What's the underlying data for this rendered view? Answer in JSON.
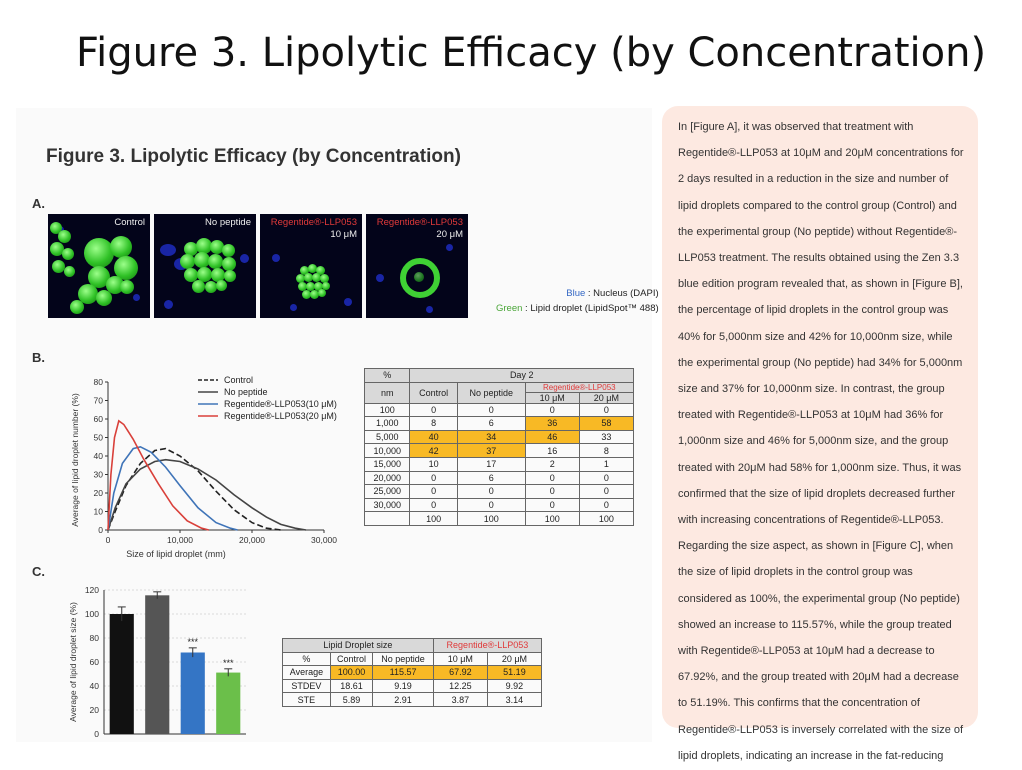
{
  "slide": {
    "title": "Figure 3. Lipolytic Efficacy (by Concentration)"
  },
  "figure": {
    "heading": "Figure 3. Lipolytic Efficacy (by Concentration)",
    "panel_a": {
      "letter": "A.",
      "images": [
        {
          "label": "Control"
        },
        {
          "label": "No peptide"
        },
        {
          "label": "Regentide®-LLP053",
          "conc": "10 μM"
        },
        {
          "label": "Regentide®-LLP053",
          "conc": "20 μM"
        }
      ],
      "stain_legend": {
        "blue_key": "Blue",
        "blue_val": " : Nucleus (DAPI)",
        "green_key": "Green",
        "green_val": " : Lipid droplet (LipidSpot™ 488)"
      }
    },
    "panel_b": {
      "letter": "B."
    },
    "panel_c": {
      "letter": "C."
    }
  },
  "chart_data": [
    {
      "type": "line",
      "xlabel": "Size of lipid droplet (mm)",
      "ylabel": "Average of lipid droplet number (%)",
      "xlim": [
        0,
        30000
      ],
      "ylim": [
        0,
        80
      ],
      "xticks": [
        "0",
        "10,000",
        "20,000",
        "30,000"
      ],
      "yticks": [
        "0",
        "10",
        "20",
        "30",
        "40",
        "50",
        "60",
        "70",
        "80"
      ],
      "legend_position": "top-right",
      "series": [
        {
          "name": "Control",
          "color": "#222222",
          "dash": true,
          "points": [
            [
              0,
              0
            ],
            [
              1000,
              10
            ],
            [
              2500,
              24
            ],
            [
              4500,
              36
            ],
            [
              6500,
              43
            ],
            [
              8000,
              44
            ],
            [
              10000,
              40
            ],
            [
              12500,
              32
            ],
            [
              15000,
              21
            ],
            [
              17500,
              11
            ],
            [
              20000,
              4
            ],
            [
              22000,
              1
            ],
            [
              24000,
              0
            ]
          ]
        },
        {
          "name": "No peptide",
          "color": "#444444",
          "dash": false,
          "points": [
            [
              0,
              0
            ],
            [
              1000,
              12
            ],
            [
              2500,
              25
            ],
            [
              4500,
              33
            ],
            [
              6500,
              37
            ],
            [
              8000,
              38
            ],
            [
              10000,
              37
            ],
            [
              12500,
              33
            ],
            [
              15000,
              27
            ],
            [
              17500,
              19
            ],
            [
              20000,
              12
            ],
            [
              22000,
              7
            ],
            [
              24000,
              3
            ],
            [
              26000,
              1
            ],
            [
              27500,
              0
            ]
          ]
        },
        {
          "name": "Regentide®-LLP053(10 μM)",
          "color": "#3f74b8",
          "dash": false,
          "points": [
            [
              0,
              0
            ],
            [
              800,
              20
            ],
            [
              2000,
              36
            ],
            [
              3500,
              44
            ],
            [
              4500,
              45
            ],
            [
              6000,
              42
            ],
            [
              8000,
              34
            ],
            [
              10000,
              24
            ],
            [
              12500,
              12
            ],
            [
              15000,
              4
            ],
            [
              17000,
              1
            ],
            [
              18000,
              0
            ]
          ]
        },
        {
          "name": "Regentide®-LLP053(20 μM)",
          "color": "#d9403a",
          "dash": false,
          "points": [
            [
              0,
              0
            ],
            [
              400,
              30
            ],
            [
              900,
              50
            ],
            [
              1500,
              59
            ],
            [
              2200,
              57
            ],
            [
              3500,
              49
            ],
            [
              5000,
              38
            ],
            [
              7000,
              25
            ],
            [
              9000,
              13
            ],
            [
              11000,
              5
            ],
            [
              13000,
              1
            ],
            [
              14000,
              0
            ]
          ]
        }
      ]
    },
    {
      "type": "bar",
      "ylabel": "Average of lipid droplet size (%)",
      "ylim": [
        0,
        120
      ],
      "yticks": [
        "0",
        "20",
        "40",
        "60",
        "80",
        "100",
        "120"
      ],
      "categories": [
        "Control",
        "No peptide",
        "10 μM",
        "20 μM"
      ],
      "values": [
        100.0,
        115.57,
        67.92,
        51.19
      ],
      "errors": [
        5.89,
        2.91,
        3.87,
        3.14
      ],
      "colors": [
        "#111111",
        "#555555",
        "#3475c5",
        "#6bbf4a"
      ],
      "annotations": [
        "",
        "",
        "***",
        "***"
      ],
      "grid": true
    }
  ],
  "table_b": {
    "corner": "%",
    "day_label": "Day 2",
    "col_nm": "nm",
    "col_control": "Control",
    "col_nopeptide": "No peptide",
    "group_label": "Regentide®-LLP053",
    "col_10": "10 μM",
    "col_20": "20 μM",
    "rows": [
      [
        "100",
        "0",
        "0",
        "0",
        "0"
      ],
      [
        "1,000",
        "8",
        "6",
        "36",
        "58"
      ],
      [
        "5,000",
        "40",
        "34",
        "46",
        "33"
      ],
      [
        "10,000",
        "42",
        "37",
        "16",
        "8"
      ],
      [
        "15,000",
        "10",
        "17",
        "2",
        "1"
      ],
      [
        "20,000",
        "0",
        "6",
        "0",
        "0"
      ],
      [
        "25,000",
        "0",
        "0",
        "0",
        "0"
      ],
      [
        "30,000",
        "0",
        "0",
        "0",
        "0"
      ],
      [
        "",
        "100",
        "100",
        "100",
        "100"
      ]
    ],
    "highlight": [
      [
        1,
        3
      ],
      [
        1,
        4
      ],
      [
        2,
        1
      ],
      [
        2,
        2
      ],
      [
        2,
        3
      ],
      [
        3,
        1
      ],
      [
        3,
        2
      ]
    ]
  },
  "table_c": {
    "header_left": "Lipid Droplet size",
    "header_right": "Regentide®-LLP053",
    "cols": [
      "%",
      "Control",
      "No peptide",
      "10 μM",
      "20 μM"
    ],
    "rows": [
      [
        "Average",
        "100.00",
        "115.57",
        "67.92",
        "51.19"
      ],
      [
        "STDEV",
        "18.61",
        "9.19",
        "12.25",
        "9.92"
      ],
      [
        "STE",
        "5.89",
        "2.91",
        "3.87",
        "3.14"
      ]
    ]
  },
  "description": "In [Figure A], it was observed that treatment with Regentide®-LLP053 at 10μM and 20μM concentrations for 2 days resulted in a reduction in the size and number of lipid droplets compared to the control group (Control) and the experimental group (No peptide) without Regentide®-LLP053 treatment. The results obtained using the Zen 3.3 blue edition program revealed that, as shown in [Figure B], the percentage of lipid droplets in the control group was 40% for 5,000nm size and 42% for 10,000nm size, while the experimental group (No peptide) had 34% for 5,000nm size and 37% for 10,000nm size. In contrast, the group treated with Regentide®-LLP053 at 10μM had 36% for 1,000nm size and 46% for 5,000nm size, and the group treated with 20μM had 58% for 1,000nm size. Thus, it was confirmed that the size of lipid droplets decreased further with increasing concentrations of Regentide®-LLP053. Regarding the size aspect, as shown in [Figure C], when the size of lipid droplets in the control group was considered as 100%, the experimental group (No peptide) showed an increase to 115.57%, while the group treated with Regentide®-LLP053 at 10μM had a decrease to 67.92%, and the group treated with 20μM had a decrease to 51.19%. This confirms that the concentration of Regentide®-LLP053 is inversely correlated with the size of lipid droplets, indicating an increase in the fat-reducing effect."
}
